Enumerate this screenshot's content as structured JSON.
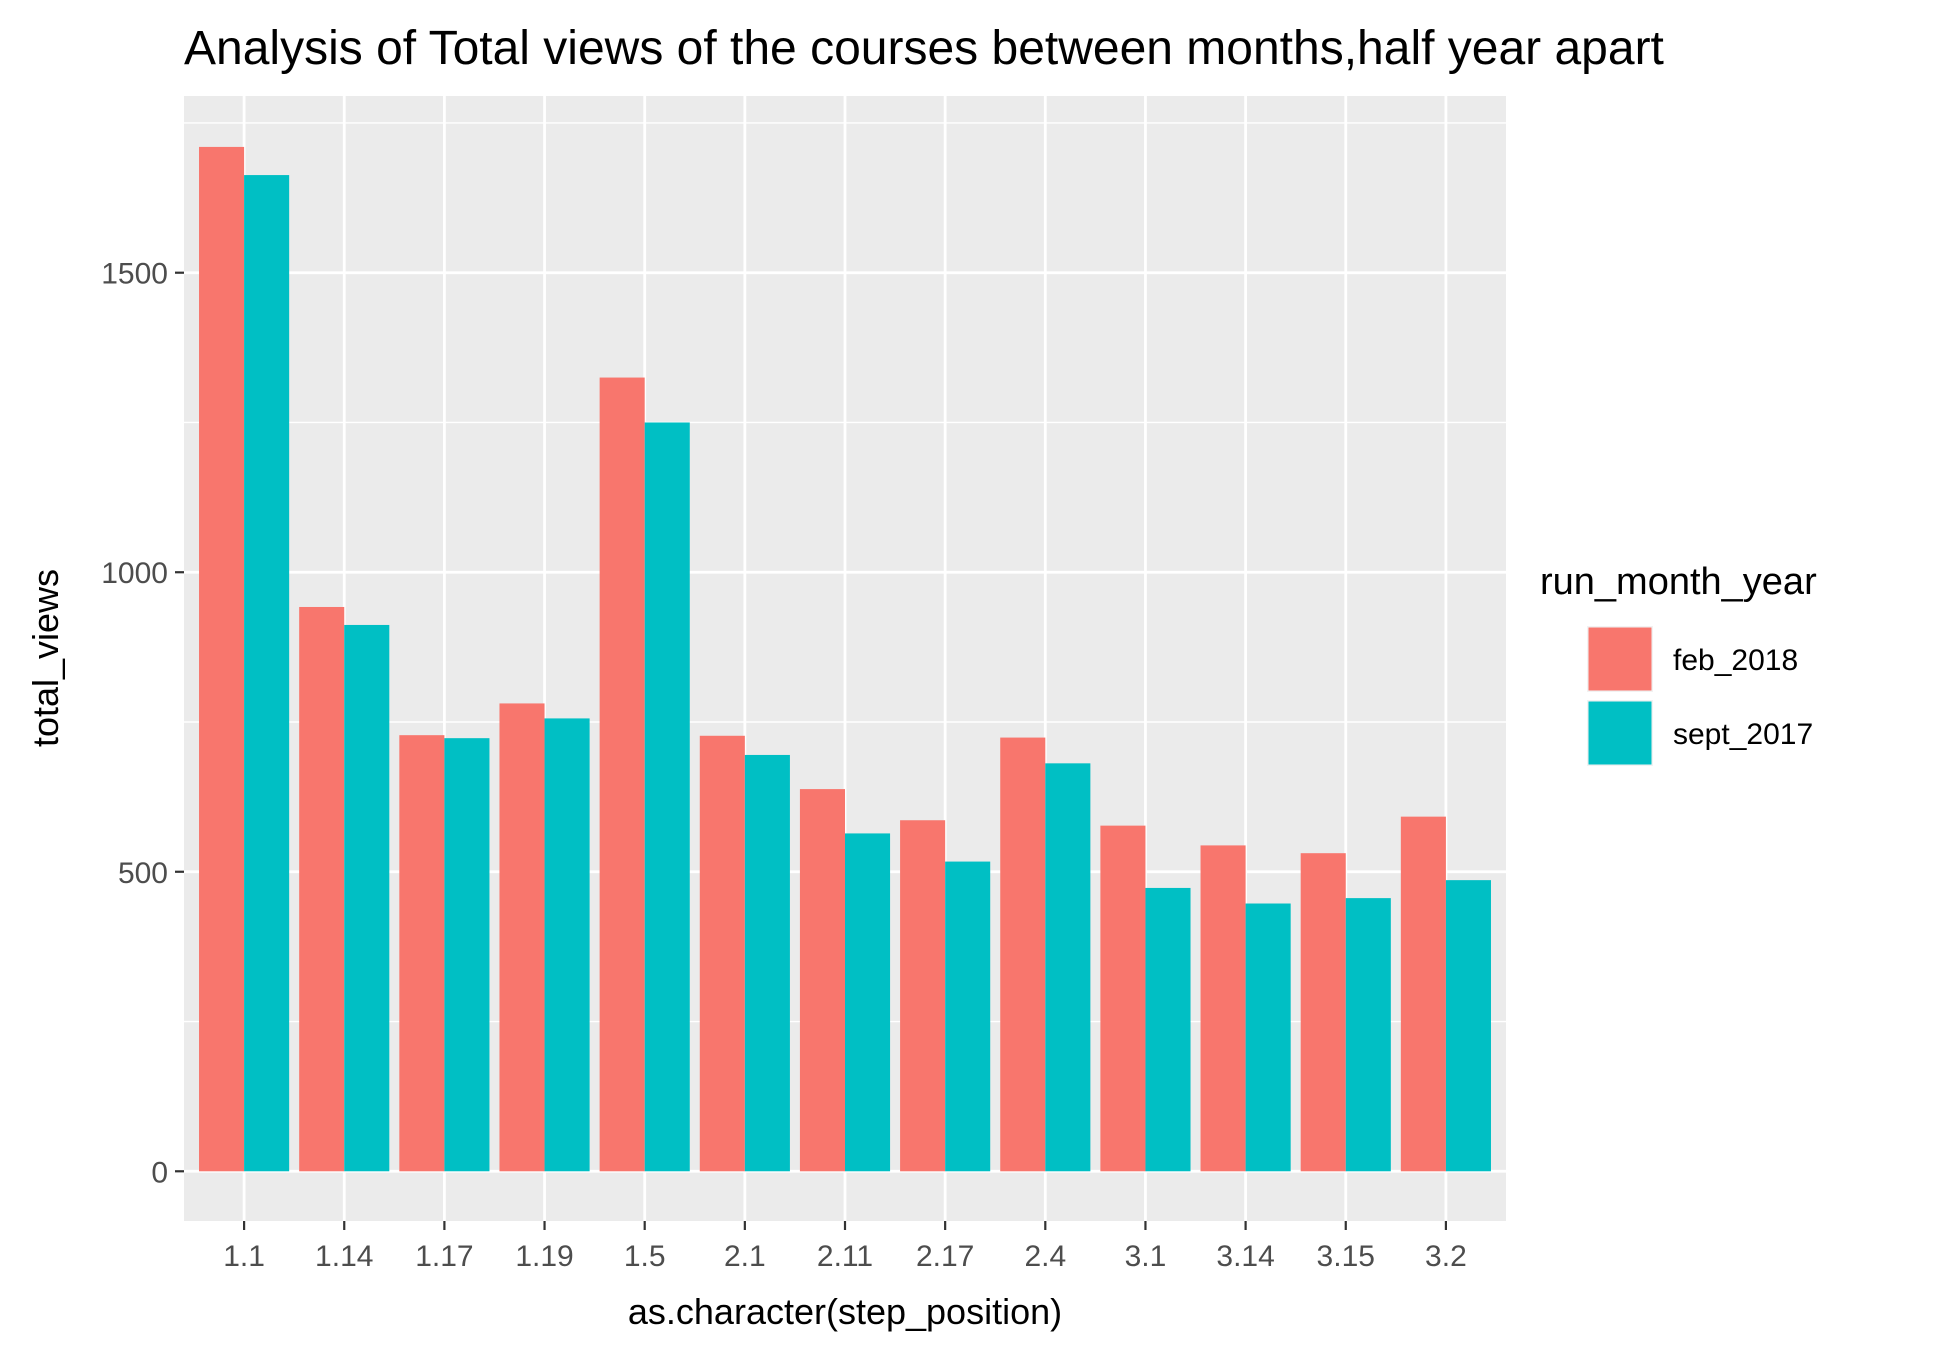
{
  "chart_data": {
    "type": "bar",
    "title": "Analysis of Total views of the courses between months,half year apart",
    "xlabel": "as.character(step_position)",
    "ylabel": "total_views",
    "categories": [
      "1.1",
      "1.14",
      "1.17",
      "1.19",
      "1.5",
      "2.1",
      "2.11",
      "2.17",
      "2.4",
      "3.1",
      "3.14",
      "3.15",
      "3.2"
    ],
    "series": [
      {
        "name": "feb_2018",
        "color": "#F8766D",
        "values": [
          1710,
          942,
          728,
          781,
          1325,
          727,
          638,
          586,
          724,
          577,
          544,
          531,
          592
        ]
      },
      {
        "name": "sept_2017",
        "color": "#00BFC4",
        "values": [
          1663,
          912,
          723,
          756,
          1250,
          695,
          564,
          517,
          681,
          473,
          447,
          456,
          486
        ]
      }
    ],
    "yticks": [
      0,
      500,
      1000,
      1500
    ],
    "ylim": [
      -83,
      1795
    ],
    "grid": true,
    "legend": {
      "title": "run_month_year",
      "position": "right"
    },
    "panel_color": "#EBEBEB",
    "grid_color": "#FFFFFF"
  }
}
